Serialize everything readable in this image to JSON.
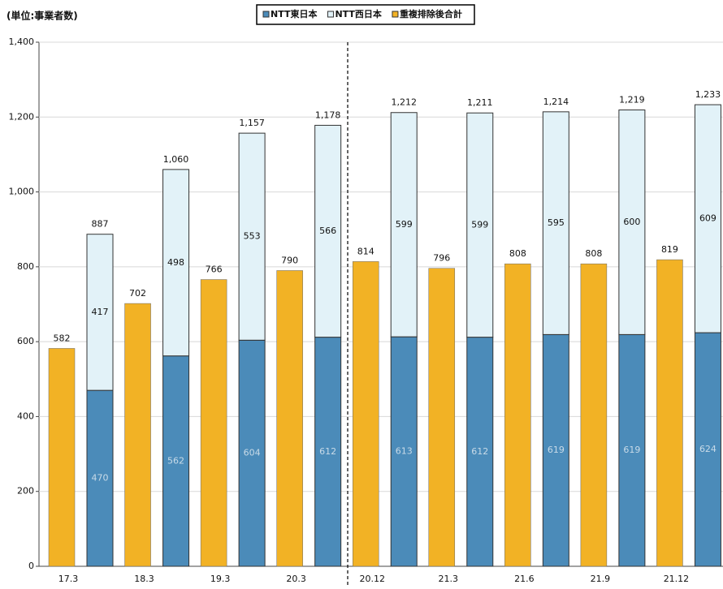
{
  "chart_data": {
    "type": "bar",
    "unit_label": "(単位:事業者数)",
    "categories": [
      "17.3",
      "18.3",
      "19.3",
      "20.3",
      "20.12",
      "21.3",
      "21.6",
      "21.9",
      "21.12"
    ],
    "series": [
      {
        "name": "NTT東日本",
        "color": "#4b8bb9",
        "stack": "ntt",
        "values": [
          470,
          562,
          604,
          612,
          613,
          612,
          619,
          619,
          624
        ]
      },
      {
        "name": "NTT西日本",
        "color": "#e2f2f8",
        "stack": "ntt",
        "values": [
          417,
          498,
          553,
          566,
          599,
          599,
          595,
          600,
          609
        ]
      },
      {
        "name": "重複排除後合計",
        "color": "#f2b225",
        "stack": "total",
        "values": [
          582,
          702,
          766,
          790,
          814,
          796,
          808,
          808,
          819
        ]
      }
    ],
    "total_labels": [
      "887",
      "1,060",
      "1,157",
      "1,178",
      "1,212",
      "1,211",
      "1,214",
      "1,219",
      "1,233"
    ],
    "ylim": [
      0,
      1400
    ],
    "yticks": [
      0,
      200,
      400,
      600,
      800,
      {
        "value": 1000,
        "label": "1,000"
      },
      {
        "value": 1200,
        "label": "1,200"
      },
      {
        "value": 1400,
        "label": "1,400"
      }
    ],
    "grid": true
  }
}
